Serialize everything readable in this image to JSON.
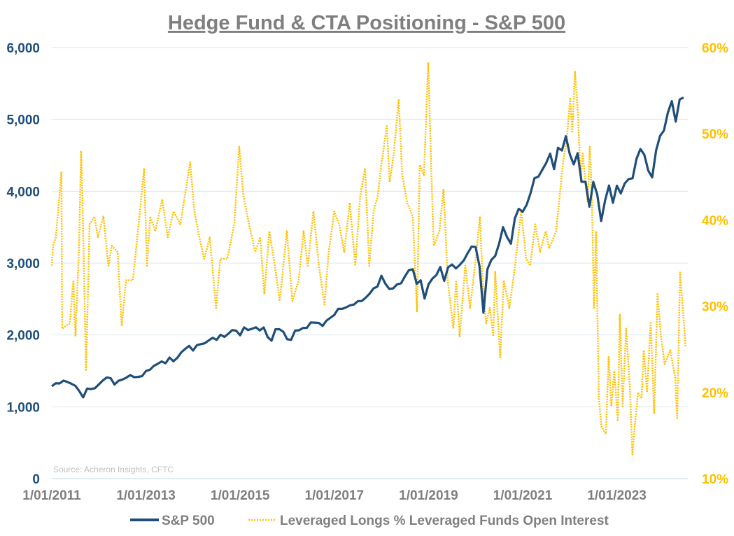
{
  "chart_data": {
    "type": "line",
    "title": "Hedge Fund & CTA Positioning - S&P 500",
    "source_note": "Source: Acheron Insights, CFTC",
    "colors": {
      "sp500": "#1F4E79",
      "leveraged": "#FFC000",
      "title": "#7F7F7F",
      "grid": "#DCE6F1"
    },
    "x_axis": {
      "type": "date",
      "range": [
        "2011-01-01",
        "2024-06-16"
      ],
      "tick_labels": [
        "1/01/2011",
        "1/01/2013",
        "1/01/2015",
        "1/01/2017",
        "1/01/2019",
        "1/01/2021",
        "1/01/2023"
      ],
      "tick_dates": [
        "2011-01-01",
        "2013-01-01",
        "2015-01-01",
        "2017-01-01",
        "2019-01-01",
        "2021-01-01",
        "2023-01-01"
      ]
    },
    "y_left": {
      "range": [
        0,
        6000
      ],
      "tick_labels": [
        "0",
        "1,000",
        "2,000",
        "3,000",
        "4,000",
        "5,000",
        "6,000"
      ],
      "tick_values": [
        0,
        1000,
        2000,
        3000,
        4000,
        5000,
        6000
      ]
    },
    "y_right": {
      "range": [
        10,
        60
      ],
      "unit": "%",
      "tick_labels": [
        "10%",
        "20%",
        "30%",
        "40%",
        "50%",
        "60%"
      ],
      "tick_values": [
        10,
        20,
        30,
        40,
        50,
        60
      ]
    },
    "grid": true,
    "legend_position": "bottom",
    "series": [
      {
        "name": "S&P 500",
        "axis": "left",
        "style": "solid",
        "start": "2011-01",
        "frequency": "monthly",
        "values": [
          1286,
          1327,
          1325,
          1364,
          1345,
          1321,
          1292,
          1219,
          1131,
          1253,
          1247,
          1258,
          1312,
          1366,
          1408,
          1398,
          1310,
          1362,
          1379,
          1406,
          1441,
          1412,
          1416,
          1426,
          1498,
          1515,
          1569,
          1598,
          1631,
          1606,
          1686,
          1633,
          1682,
          1757,
          1806,
          1848,
          1783,
          1859,
          1872,
          1884,
          1924,
          1960,
          1931,
          2003,
          1972,
          2018,
          2068,
          2059,
          1995,
          2105,
          2068,
          2086,
          2107,
          2063,
          2104,
          1972,
          1920,
          2079,
          2080,
          2044,
          1940,
          1932,
          2060,
          2065,
          2097,
          2099,
          2174,
          2171,
          2168,
          2126,
          2199,
          2239,
          2279,
          2364,
          2363,
          2384,
          2412,
          2423,
          2470,
          2472,
          2519,
          2575,
          2648,
          2674,
          2824,
          2714,
          2641,
          2648,
          2705,
          2718,
          2816,
          2902,
          2914,
          2712,
          2760,
          2507,
          2704,
          2784,
          2834,
          2946,
          2752,
          2942,
          2980,
          2926,
          2977,
          3038,
          3141,
          3231,
          3226,
          2954,
          2310,
          2912,
          3044,
          3100,
          3271,
          3500,
          3363,
          3270,
          3622,
          3756,
          3714,
          3811,
          3973,
          4181,
          4204,
          4298,
          4395,
          4523,
          4308,
          4605,
          4567,
          4766,
          4516,
          4374,
          4530,
          4132,
          4132,
          3785,
          4130,
          3955,
          3586,
          3872,
          4080,
          3840,
          4077,
          3970,
          4109,
          4169,
          4180,
          4450,
          4589,
          4508,
          4288,
          4194,
          4568,
          4770,
          4846,
          5096,
          5254,
          4970,
          5278,
          5305
        ]
      },
      {
        "name": "Leveraged Longs % Leveraged Funds Open Interest",
        "axis": "right",
        "style": "dotted",
        "points": [
          [
            "2011-01-01",
            34.7
          ],
          [
            "2011-01-11",
            37
          ],
          [
            "2011-02-02",
            38
          ],
          [
            "2011-03-15",
            45.6
          ],
          [
            "2011-03-20",
            27.4
          ],
          [
            "2011-05-19",
            28
          ],
          [
            "2011-06-16",
            33
          ],
          [
            "2011-07-02",
            26.5
          ],
          [
            "2011-07-29",
            36.7
          ],
          [
            "2011-08-15",
            48
          ],
          [
            "2011-08-26",
            42
          ],
          [
            "2011-09-23",
            22.5
          ],
          [
            "2011-10-20",
            39.5
          ],
          [
            "2011-11-27",
            40.4
          ],
          [
            "2011-12-24",
            38
          ],
          [
            "2012-02-06",
            40.4
          ],
          [
            "2012-03-14",
            34.7
          ],
          [
            "2012-04-10",
            37
          ],
          [
            "2012-05-24",
            36.3
          ],
          [
            "2012-06-26",
            27.7
          ],
          [
            "2012-07-28",
            33
          ],
          [
            "2012-09-21",
            33
          ],
          [
            "2012-11-15",
            41
          ],
          [
            "2012-12-17",
            46
          ],
          [
            "2013-01-08",
            34.7
          ],
          [
            "2013-02-04",
            40.4
          ],
          [
            "2013-03-12",
            38.7
          ],
          [
            "2013-05-05",
            42.4
          ],
          [
            "2013-06-18",
            38
          ],
          [
            "2013-08-01",
            41
          ],
          [
            "2013-09-24",
            39.5
          ],
          [
            "2013-11-07",
            43.6
          ],
          [
            "2013-12-09",
            46.7
          ],
          [
            "2014-01-11",
            41
          ],
          [
            "2014-02-19",
            38
          ],
          [
            "2014-03-26",
            35.5
          ],
          [
            "2014-05-09",
            38
          ],
          [
            "2014-06-27",
            29.8
          ],
          [
            "2014-07-29",
            35.5
          ],
          [
            "2014-09-23",
            35.5
          ],
          [
            "2014-11-16",
            39.5
          ],
          [
            "2014-12-24",
            48.5
          ],
          [
            "2015-01-26",
            42.8
          ],
          [
            "2015-03-09",
            39.5
          ],
          [
            "2015-04-26",
            36.3
          ],
          [
            "2015-06-04",
            38
          ],
          [
            "2015-07-06",
            31.4
          ],
          [
            "2015-08-14",
            38.7
          ],
          [
            "2015-09-26",
            34.7
          ],
          [
            "2015-11-04",
            30.6
          ],
          [
            "2015-12-28",
            38.7
          ],
          [
            "2016-02-10",
            30.6
          ],
          [
            "2016-03-28",
            33
          ],
          [
            "2016-05-06",
            38.7
          ],
          [
            "2016-06-08",
            34.7
          ],
          [
            "2016-07-21",
            41
          ],
          [
            "2016-09-03",
            34.7
          ],
          [
            "2016-10-16",
            30.2
          ],
          [
            "2016-11-18",
            36.3
          ],
          [
            "2017-01-01",
            41
          ],
          [
            "2017-02-08",
            39.5
          ],
          [
            "2017-03-16",
            36.3
          ],
          [
            "2017-04-29",
            42
          ],
          [
            "2017-06-11",
            34.7
          ],
          [
            "2017-07-19",
            42.8
          ],
          [
            "2017-08-26",
            46
          ],
          [
            "2017-09-28",
            34.7
          ],
          [
            "2017-11-01",
            41
          ],
          [
            "2017-12-03",
            42.8
          ],
          [
            "2017-12-30",
            46.4
          ],
          [
            "2018-02-12",
            50.9
          ],
          [
            "2018-03-04",
            44.4
          ],
          [
            "2018-04-06",
            47.7
          ],
          [
            "2018-05-13",
            54
          ],
          [
            "2018-06-10",
            45.2
          ],
          [
            "2018-07-18",
            42
          ],
          [
            "2018-09-01",
            40.4
          ],
          [
            "2018-10-03",
            29.4
          ],
          [
            "2018-10-24",
            46.4
          ],
          [
            "2018-11-26",
            45.2
          ],
          [
            "2018-12-29",
            58.3
          ],
          [
            "2019-01-20",
            46.9
          ],
          [
            "2019-02-11",
            37
          ],
          [
            "2019-03-24",
            38.7
          ],
          [
            "2019-04-26",
            43.6
          ],
          [
            "2019-05-28",
            33
          ],
          [
            "2019-07-11",
            27.4
          ],
          [
            "2019-08-02",
            33
          ],
          [
            "2019-08-29",
            26.5
          ],
          [
            "2019-10-12",
            34.7
          ],
          [
            "2019-11-19",
            29.8
          ],
          [
            "2020-01-02",
            35.5
          ],
          [
            "2020-02-04",
            40.4
          ],
          [
            "2020-02-25",
            33
          ],
          [
            "2020-03-22",
            28
          ],
          [
            "2020-04-19",
            29.8
          ],
          [
            "2020-05-16",
            26.5
          ],
          [
            "2020-06-01",
            34
          ],
          [
            "2020-07-09",
            24.1
          ],
          [
            "2020-08-06",
            33
          ],
          [
            "2020-09-19",
            29.8
          ],
          [
            "2020-10-27",
            34
          ],
          [
            "2020-12-20",
            41
          ],
          [
            "2021-01-27",
            35.5
          ],
          [
            "2021-02-28",
            34.7
          ],
          [
            "2021-04-07",
            39.5
          ],
          [
            "2021-05-14",
            36.3
          ],
          [
            "2021-06-27",
            38.7
          ],
          [
            "2021-07-24",
            36.7
          ],
          [
            "2021-09-17",
            38.7
          ],
          [
            "2021-10-14",
            42.8
          ],
          [
            "2021-11-11",
            46.9
          ],
          [
            "2021-12-08",
            49.3
          ],
          [
            "2022-01-04",
            54.2
          ],
          [
            "2022-01-20",
            50.1
          ],
          [
            "2022-02-11",
            57.2
          ],
          [
            "2022-03-03",
            52.5
          ],
          [
            "2022-03-25",
            44.4
          ],
          [
            "2022-04-10",
            47.7
          ],
          [
            "2022-04-26",
            45.2
          ],
          [
            "2022-05-18",
            42
          ],
          [
            "2022-06-04",
            48.5
          ],
          [
            "2022-06-20",
            42.8
          ],
          [
            "2022-07-06",
            29.8
          ],
          [
            "2022-07-22",
            38.7
          ],
          [
            "2022-08-13",
            19.3
          ],
          [
            "2022-09-04",
            16
          ],
          [
            "2022-10-07",
            15.2
          ],
          [
            "2022-10-28",
            24.1
          ],
          [
            "2022-11-19",
            18.4
          ],
          [
            "2022-12-11",
            22.5
          ],
          [
            "2023-01-08",
            16.8
          ],
          [
            "2023-01-24",
            29
          ],
          [
            "2023-02-15",
            18.4
          ],
          [
            "2023-03-12",
            27.4
          ],
          [
            "2023-04-09",
            20.9
          ],
          [
            "2023-04-30",
            12.8
          ],
          [
            "2023-05-22",
            16.8
          ],
          [
            "2023-06-13",
            20
          ],
          [
            "2023-07-10",
            19.3
          ],
          [
            "2023-07-26",
            24.9
          ],
          [
            "2023-08-22",
            20
          ],
          [
            "2023-09-19",
            28.2
          ],
          [
            "2023-10-16",
            17.6
          ],
          [
            "2023-11-12",
            31.4
          ],
          [
            "2023-12-09",
            26.5
          ],
          [
            "2024-01-06",
            23.3
          ],
          [
            "2024-02-19",
            24.9
          ],
          [
            "2024-03-27",
            21.7
          ],
          [
            "2024-04-12",
            17
          ],
          [
            "2024-05-04",
            33.9
          ],
          [
            "2024-05-25",
            29.8
          ],
          [
            "2024-06-16",
            25.3
          ]
        ]
      }
    ],
    "legend": [
      "S&P 500",
      "Leveraged Longs % Leveraged Funds Open Interest"
    ]
  }
}
